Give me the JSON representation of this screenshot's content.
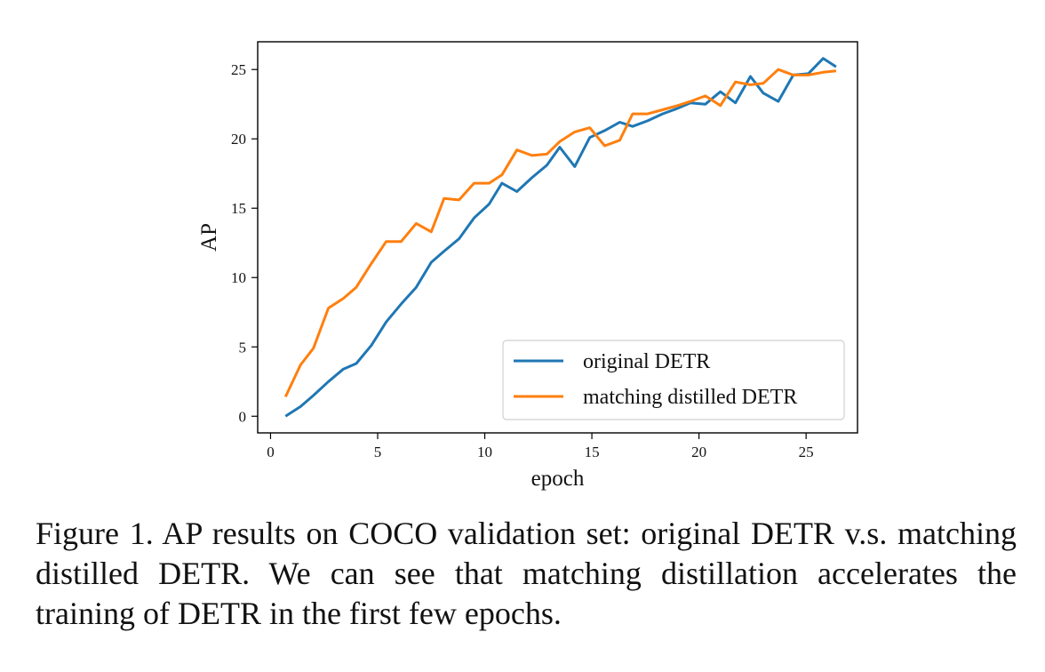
{
  "chart_data": {
    "type": "line",
    "xlabel": "epoch",
    "ylabel": "AP",
    "xlim": [
      -0.6,
      27.4
    ],
    "ylim": [
      -1.2,
      27.0
    ],
    "xticks": [
      0,
      5,
      10,
      15,
      20,
      25
    ],
    "yticks": [
      0,
      5,
      10,
      15,
      20,
      25
    ],
    "grid": false,
    "legend_position": "lower-right",
    "series": [
      {
        "name": "original DETR",
        "color": "#1f77b4",
        "x": [
          0.7,
          1.4,
          2.0,
          2.7,
          3.4,
          4.0,
          4.7,
          5.4,
          6.1,
          6.8,
          7.5,
          8.1,
          8.8,
          9.5,
          10.2,
          10.8,
          11.5,
          12.2,
          12.9,
          13.5,
          14.2,
          14.9,
          15.6,
          16.3,
          16.9,
          17.6,
          18.3,
          19.0,
          19.6,
          20.3,
          21.0,
          21.7,
          22.4,
          23.0,
          23.7,
          24.4,
          25.1,
          25.8,
          26.4
        ],
        "y": [
          0.0,
          0.7,
          1.5,
          2.5,
          3.4,
          3.8,
          5.1,
          6.8,
          8.1,
          9.3,
          11.1,
          11.9,
          12.8,
          14.3,
          15.3,
          16.8,
          16.2,
          17.2,
          18.1,
          19.4,
          18.0,
          20.1,
          20.6,
          21.2,
          20.9,
          21.3,
          21.8,
          22.2,
          22.6,
          22.5,
          23.4,
          22.6,
          24.5,
          23.3,
          22.7,
          24.6,
          24.7,
          25.8,
          25.2
        ]
      },
      {
        "name": "matching distilled DETR",
        "color": "#ff7f0e",
        "x": [
          0.7,
          1.4,
          2.0,
          2.7,
          3.4,
          4.0,
          4.7,
          5.4,
          6.1,
          6.8,
          7.5,
          8.1,
          8.8,
          9.5,
          10.2,
          10.8,
          11.5,
          12.2,
          12.9,
          13.5,
          14.2,
          14.9,
          15.6,
          16.3,
          16.9,
          17.6,
          18.3,
          19.0,
          19.6,
          20.3,
          21.0,
          21.7,
          22.4,
          23.0,
          23.7,
          24.4,
          25.1,
          25.8,
          26.4
        ],
        "y": [
          1.4,
          3.7,
          4.9,
          7.8,
          8.5,
          9.3,
          11.0,
          12.6,
          12.6,
          13.9,
          13.3,
          15.7,
          15.6,
          16.8,
          16.8,
          17.4,
          19.2,
          18.8,
          18.9,
          19.8,
          20.5,
          20.8,
          19.5,
          19.9,
          21.8,
          21.8,
          22.1,
          22.4,
          22.7,
          23.1,
          22.4,
          24.1,
          23.9,
          24.0,
          25.0,
          24.6,
          24.6,
          24.8,
          24.9
        ]
      }
    ]
  },
  "caption": "Figure 1. AP results on COCO validation set: original DETR v.s. matching distilled DETR. We can see that matching distillation accelerates the training of DETR in the first few epochs."
}
